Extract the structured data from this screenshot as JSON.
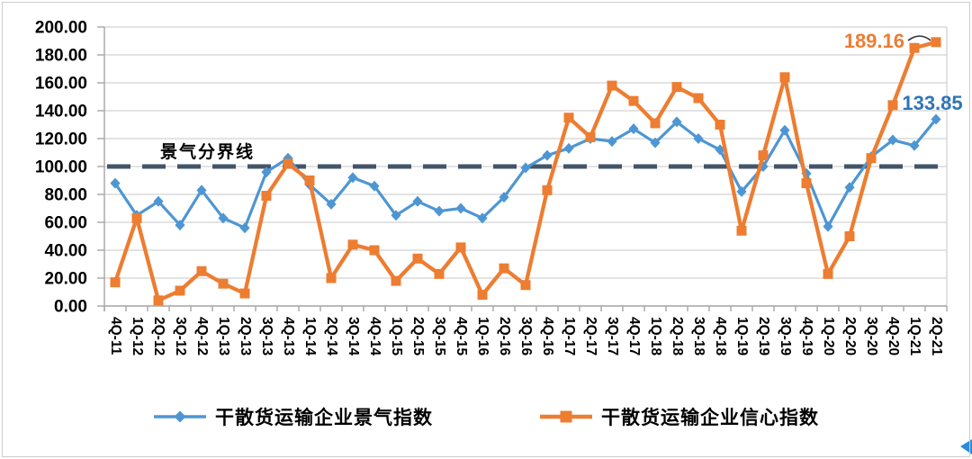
{
  "chart_data": {
    "type": "line",
    "title": "",
    "categories": [
      "4Q-11",
      "1Q-12",
      "2Q-12",
      "3Q-12",
      "4Q-12",
      "1Q-13",
      "2Q-13",
      "3Q-13",
      "4Q-13",
      "1Q-14",
      "2Q-14",
      "3Q-14",
      "4Q-14",
      "1Q-15",
      "2Q-15",
      "3Q-15",
      "4Q-15",
      "1Q-16",
      "2Q-16",
      "3Q-16",
      "4Q-16",
      "1Q-17",
      "2Q-17",
      "3Q-17",
      "4Q-17",
      "1Q-18",
      "2Q-18",
      "3Q-18",
      "4Q-18",
      "1Q-19",
      "2Q-19",
      "3Q-19",
      "4Q-19",
      "1Q-20",
      "2Q-20",
      "3Q-20",
      "4Q-20",
      "1Q-21",
      "2Q-21"
    ],
    "series": [
      {
        "name": "干散货运输企业景气指数",
        "color": "#4E96D3",
        "marker": "diamond",
        "line_width": 3.2,
        "values": [
          88,
          65,
          75,
          58,
          83,
          63,
          56,
          96,
          106,
          87,
          73,
          92,
          86,
          65,
          75,
          68,
          70,
          63,
          78,
          99,
          108,
          113,
          120,
          118,
          127,
          117,
          132,
          120,
          112,
          82,
          100,
          126,
          95,
          57,
          85,
          107,
          119,
          115,
          133.85
        ]
      },
      {
        "name": "干散货运输企业信心指数",
        "color": "#ED7D31",
        "marker": "square",
        "line_width": 4.3,
        "values": [
          17,
          63,
          4,
          11,
          25,
          16,
          9,
          79,
          102,
          90,
          20,
          44,
          40,
          18,
          34,
          23,
          42,
          8,
          27,
          15,
          83,
          135,
          121,
          158,
          147,
          131,
          157,
          149,
          130,
          54,
          108,
          164,
          88,
          23,
          50,
          106,
          144,
          185,
          189.16
        ]
      }
    ],
    "ylim": [
      0,
      200
    ],
    "ytick_step": 20,
    "ytick_labels": [
      "0.00",
      "20.00",
      "40.00",
      "60.00",
      "80.00",
      "100.00",
      "120.00",
      "140.00",
      "160.00",
      "180.00",
      "200.00"
    ],
    "grid": true,
    "legend_position": "bottom",
    "reference_line": {
      "value": 100,
      "label": "景气分界线",
      "color": "#44546A",
      "style": "dashed"
    },
    "annotations": [
      {
        "text": "189.16",
        "color": "#ED7D31",
        "series_index": 1,
        "category": "2Q-21"
      },
      {
        "text": "133.85",
        "color": "#2E75B6",
        "series_index": 0,
        "category": "2Q-21"
      }
    ],
    "axis_color": "#A6A6A6",
    "grid_color": "#D2D2D2",
    "text_color": "#000000"
  },
  "decorations": {
    "corner_arrow_color": "#2E8BD8"
  }
}
